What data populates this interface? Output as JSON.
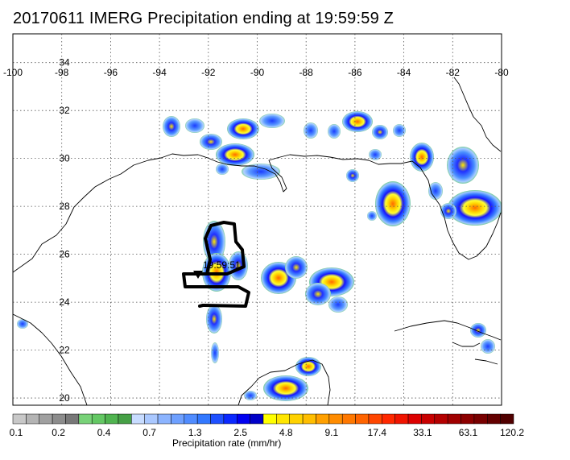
{
  "title": "20170611 IMERG Precipitation ending at 19:59:59 Z",
  "map": {
    "lon_ticks": [
      "-100",
      "-98",
      "-96",
      "-94",
      "-92",
      "-90",
      "-88",
      "-86",
      "-84",
      "-82",
      "-80"
    ],
    "lat_ticks": [
      "34",
      "32",
      "30",
      "28",
      "26",
      "24",
      "22",
      "20"
    ],
    "lon_range": [
      -100,
      -80
    ],
    "lat_range": [
      19.7,
      35.2
    ],
    "grid": "dotted",
    "track_time_label": "19:59:51"
  },
  "colorbar": {
    "title": "Precipitation rate (mm/hr)",
    "labels": [
      "0.1",
      "0.2",
      "0.4",
      "0.7",
      "1.3",
      "2.5",
      "4.8",
      "9.1",
      "17.4",
      "33.1",
      "63.1",
      "120.2"
    ],
    "colors": [
      "#c8c8c8",
      "#b4b4b4",
      "#a0a0a0",
      "#8c8c8c",
      "#787878",
      "#78d278",
      "#64c864",
      "#50b450",
      "#46a046",
      "#c8dcff",
      "#aac8ff",
      "#8cb4ff",
      "#6ea0ff",
      "#508cff",
      "#3278ff",
      "#1e50ff",
      "#0a28ff",
      "#0000f0",
      "#0000c8",
      "#ffff00",
      "#ffe600",
      "#ffd200",
      "#ffbe00",
      "#ffa000",
      "#ff8c00",
      "#ff7800",
      "#ff6400",
      "#ff4600",
      "#ff2800",
      "#f01400",
      "#dc0000",
      "#c80000",
      "#b40000",
      "#a00000",
      "#8c0000",
      "#780000",
      "#640000",
      "#500000"
    ]
  }
}
